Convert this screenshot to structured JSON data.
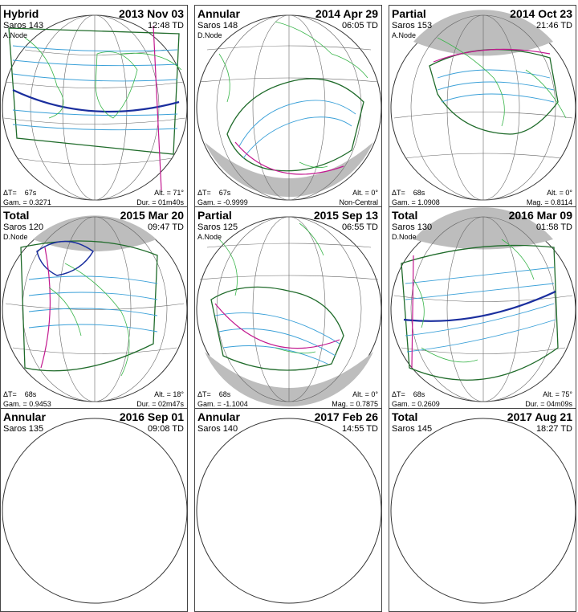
{
  "panels": [
    {
      "type": "Hybrid",
      "date": "2013 Nov 03",
      "saros": "Saros 143",
      "time": "12:48 TD",
      "node": "A.Node",
      "dt_label": "ΔT=",
      "dt": "67s",
      "gamma": "Gam. = 0.3271",
      "alt": "Alt. = 71°",
      "extra": "Dur. = 01m40s"
    },
    {
      "type": "Annular",
      "date": "2014 Apr 29",
      "saros": "Saros 148",
      "time": "06:05 TD",
      "node": "D.Node",
      "dt_label": "ΔT=",
      "dt": "67s",
      "gamma": "Gam. = -0.9999",
      "alt": "Alt. = 0°",
      "extra": "Non-Central"
    },
    {
      "type": "Partial",
      "date": "2014 Oct 23",
      "saros": "Saros 153",
      "time": "21:46 TD",
      "node": "A.Node",
      "dt_label": "ΔT=",
      "dt": "68s",
      "gamma": "Gam. = 1.0908",
      "alt": "Alt. = 0°",
      "extra": "Mag. = 0.8114"
    },
    {
      "type": "Total",
      "date": "2015 Mar 20",
      "saros": "Saros 120",
      "time": "09:47 TD",
      "node": "D.Node",
      "dt_label": "ΔT=",
      "dt": "68s",
      "gamma": "Gam. = 0.9453",
      "alt": "Alt. = 18°",
      "extra": "Dur. = 02m47s"
    },
    {
      "type": "Partial",
      "date": "2015 Sep 13",
      "saros": "Saros 125",
      "time": "06:55 TD",
      "node": "A.Node",
      "dt_label": "ΔT=",
      "dt": "68s",
      "gamma": "Gam. = -1.1004",
      "alt": "Alt. = 0°",
      "extra": "Mag. = 0.7875"
    },
    {
      "type": "Total",
      "date": "2016 Mar 09",
      "saros": "Saros 130",
      "time": "01:58 TD",
      "node": "D.Node",
      "dt_label": "ΔT=",
      "dt": "68s",
      "gamma": "Gam. = 0.2609",
      "alt": "Alt. = 75°",
      "extra": "Dur. = 04m09s"
    },
    {
      "type": "Annular",
      "date": "2016 Sep 01",
      "saros": "Saros 135",
      "time": "09:08 TD",
      "node": "",
      "dt_label": "",
      "dt": "",
      "gamma": "",
      "alt": "",
      "extra": ""
    },
    {
      "type": "Annular",
      "date": "2017 Feb 26",
      "saros": "Saros 140",
      "time": "14:55 TD",
      "node": "",
      "dt_label": "",
      "dt": "",
      "gamma": "",
      "alt": "",
      "extra": ""
    },
    {
      "type": "Total",
      "date": "2017 Aug 21",
      "saros": "Saros 145",
      "time": "18:27 TD",
      "node": "",
      "dt_label": "",
      "dt": "",
      "gamma": "",
      "alt": "",
      "extra": ""
    }
  ],
  "colors": {
    "land": "#39b54a",
    "umbra_path": "#1a2e9e",
    "limit_green": "#1f6b2a",
    "magenta": "#c2188f",
    "cyan": "#3aa0d8",
    "night": "#bdbdbd",
    "grid": "#555555"
  }
}
